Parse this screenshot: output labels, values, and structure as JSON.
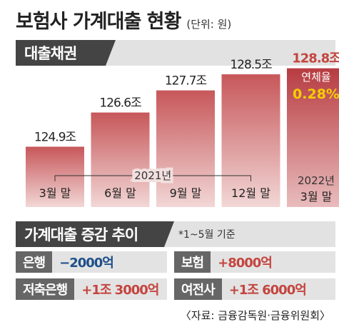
{
  "title": {
    "main": "보험사 가계대출 현황",
    "unit": "(단위: 원)"
  },
  "section1": {
    "tag": "대출채권"
  },
  "chart_data": {
    "type": "bar",
    "title": "대출채권",
    "categories": [
      "3월 말",
      "6월 말",
      "9월 말",
      "12월 말",
      "3월 말"
    ],
    "series": [
      {
        "values": [
          124.9,
          126.6,
          127.7,
          128.5,
          128.8
        ]
      }
    ],
    "value_labels": [
      "124.9조",
      "126.6조",
      "127.7조",
      "128.5조",
      "128.8조"
    ],
    "year_groups": [
      {
        "label": "2021년",
        "categories": [
          "3월 말",
          "6월 말",
          "9월 말",
          "12월 말"
        ]
      },
      {
        "label": "2022년",
        "categories": [
          "3월 말"
        ]
      }
    ],
    "annotation": {
      "label": "연체율",
      "value": "0.28%",
      "category_index": 4
    },
    "colors": {
      "bar": "#c7575a",
      "highlight_bar": "#b73c41",
      "highlight_text": "#c4453f"
    }
  },
  "section2": {
    "tag": "가계대출 증감 추이",
    "note": "*1~5월 기준"
  },
  "changes": [
    {
      "label": "은행",
      "value": "−2000억",
      "color": "#1f4f8a"
    },
    {
      "label": "보험",
      "value": "+8000억",
      "color": "#c4453f"
    },
    {
      "label": "저축은행",
      "value": "+1조 3000억",
      "color": "#c4453f"
    },
    {
      "label": "여전사",
      "value": "+1조 6000억",
      "color": "#c4453f"
    }
  ],
  "source": "〈자료: 금융감독원·금융위원회〉"
}
